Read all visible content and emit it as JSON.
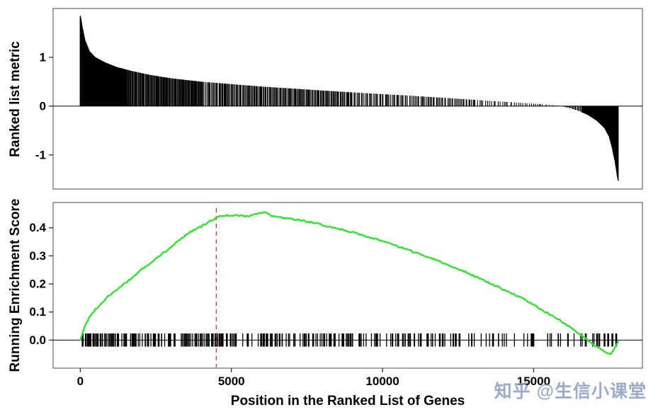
{
  "figure": {
    "background": "#ffffff",
    "panel_border_color": "#595959",
    "axis_text_color": "#000000",
    "tick_color": "#333333"
  },
  "watermark": {
    "text": "知乎 @生信小课堂",
    "color": "#8b9cc3"
  },
  "chart_data": [
    {
      "type": "bar",
      "name": "ranked-list-metric",
      "ylabel": "Ranked list metric",
      "yticks": [
        -1,
        0,
        1
      ],
      "ytick_labels": [
        "-1",
        "0",
        "1"
      ],
      "ylim": [
        -1.7,
        2.0
      ],
      "xlim": [
        -900,
        18600
      ],
      "x_range_genes": [
        0,
        17800
      ],
      "bar_color": "#000000",
      "envelope": [
        [
          0,
          1.85
        ],
        [
          60,
          1.62
        ],
        [
          150,
          1.35
        ],
        [
          300,
          1.12
        ],
        [
          500,
          1.0
        ],
        [
          800,
          0.9
        ],
        [
          1200,
          0.8
        ],
        [
          1700,
          0.72
        ],
        [
          2300,
          0.64
        ],
        [
          3000,
          0.57
        ],
        [
          4000,
          0.5
        ],
        [
          5000,
          0.45
        ],
        [
          6000,
          0.4
        ],
        [
          7000,
          0.36
        ],
        [
          8000,
          0.32
        ],
        [
          9000,
          0.28
        ],
        [
          10000,
          0.245
        ],
        [
          11000,
          0.21
        ],
        [
          12000,
          0.17
        ],
        [
          13000,
          0.13
        ],
        [
          14000,
          0.09
        ],
        [
          15000,
          0.05
        ],
        [
          15600,
          0.02
        ],
        [
          15900,
          0.0
        ],
        [
          16200,
          -0.04
        ],
        [
          16500,
          -0.1
        ],
        [
          16800,
          -0.18
        ],
        [
          17100,
          -0.3
        ],
        [
          17350,
          -0.45
        ],
        [
          17500,
          -0.62
        ],
        [
          17600,
          -0.85
        ],
        [
          17700,
          -1.15
        ],
        [
          17800,
          -1.55
        ]
      ],
      "bar_segments": [
        {
          "from": 0,
          "to": 400,
          "step": 6,
          "width": 1.6
        },
        {
          "from": 400,
          "to": 1500,
          "step": 13,
          "width": 1.4
        },
        {
          "from": 1500,
          "to": 4000,
          "step": 26,
          "width": 1.2
        },
        {
          "from": 4000,
          "to": 9000,
          "step": 34,
          "width": 1.2
        },
        {
          "from": 9000,
          "to": 13000,
          "step": 47,
          "width": 1.2
        },
        {
          "from": 13000,
          "to": 15800,
          "step": 68,
          "width": 1.1
        },
        {
          "from": 15800,
          "to": 16600,
          "step": 34,
          "width": 1.2
        },
        {
          "from": 16600,
          "to": 17800,
          "step": 8,
          "width": 1.6
        }
      ]
    },
    {
      "type": "line",
      "name": "running-enrichment-score",
      "ylabel": "Running Enrichment Score",
      "xlabel": "Position in the Ranked List of Genes",
      "yticks": [
        0.0,
        0.1,
        0.2,
        0.3,
        0.4
      ],
      "ytick_labels": [
        "0.0",
        "0.1",
        "0.2",
        "0.3",
        "0.4"
      ],
      "xticks": [
        0,
        5000,
        10000,
        15000
      ],
      "xtick_labels": [
        "0",
        "5000",
        "10000",
        "15000"
      ],
      "ylim": [
        -0.1,
        0.49
      ],
      "xlim": [
        -900,
        18600
      ],
      "line_color": "#2ee52e",
      "zero_line_color": "#000000",
      "peak_line": {
        "x": 4500,
        "color": "#e03a3a",
        "style": "dashed"
      },
      "es_max": 0.455,
      "series": [
        {
          "name": "Running ES",
          "points": [
            [
              0,
              0
            ],
            [
              150,
              0.05
            ],
            [
              300,
              0.08
            ],
            [
              500,
              0.11
            ],
            [
              700,
              0.13
            ],
            [
              900,
              0.155
            ],
            [
              1100,
              0.17
            ],
            [
              1400,
              0.195
            ],
            [
              1700,
              0.22
            ],
            [
              2000,
              0.25
            ],
            [
              2300,
              0.27
            ],
            [
              2600,
              0.3
            ],
            [
              2900,
              0.32
            ],
            [
              3200,
              0.35
            ],
            [
              3500,
              0.375
            ],
            [
              3800,
              0.395
            ],
            [
              4100,
              0.41
            ],
            [
              4400,
              0.43
            ],
            [
              4600,
              0.44
            ],
            [
              4800,
              0.445
            ],
            [
              5000,
              0.44
            ],
            [
              5200,
              0.445
            ],
            [
              5500,
              0.44
            ],
            [
              5800,
              0.45
            ],
            [
              6100,
              0.455
            ],
            [
              6400,
              0.44
            ],
            [
              6700,
              0.435
            ],
            [
              7000,
              0.43
            ],
            [
              7400,
              0.425
            ],
            [
              7800,
              0.415
            ],
            [
              8200,
              0.405
            ],
            [
              8600,
              0.395
            ],
            [
              9000,
              0.385
            ],
            [
              9400,
              0.37
            ],
            [
              9800,
              0.36
            ],
            [
              10200,
              0.345
            ],
            [
              10600,
              0.33
            ],
            [
              11000,
              0.315
            ],
            [
              11400,
              0.3
            ],
            [
              11800,
              0.285
            ],
            [
              12200,
              0.265
            ],
            [
              12600,
              0.25
            ],
            [
              13000,
              0.23
            ],
            [
              13400,
              0.21
            ],
            [
              13800,
              0.19
            ],
            [
              14200,
              0.17
            ],
            [
              14600,
              0.15
            ],
            [
              15000,
              0.125
            ],
            [
              15400,
              0.1
            ],
            [
              15800,
              0.075
            ],
            [
              16200,
              0.045
            ],
            [
              16600,
              0.015
            ],
            [
              16900,
              -0.01
            ],
            [
              17200,
              -0.03
            ],
            [
              17400,
              -0.045
            ],
            [
              17550,
              -0.05
            ],
            [
              17650,
              -0.035
            ],
            [
              17750,
              -0.015
            ],
            [
              17800,
              -0.005
            ]
          ]
        }
      ],
      "rug": {
        "color": "#000000",
        "segments": [
          {
            "from": 60,
            "to": 1500,
            "n": 42
          },
          {
            "from": 1500,
            "to": 3000,
            "n": 34
          },
          {
            "from": 3000,
            "to": 4500,
            "n": 30
          },
          {
            "from": 4300,
            "to": 4700,
            "n": 10
          },
          {
            "from": 4500,
            "to": 6500,
            "n": 34
          },
          {
            "from": 6500,
            "to": 9000,
            "n": 40
          },
          {
            "from": 9000,
            "to": 11500,
            "n": 34
          },
          {
            "from": 11500,
            "to": 14000,
            "n": 26
          },
          {
            "from": 14000,
            "to": 16000,
            "n": 16
          },
          {
            "from": 16000,
            "to": 17750,
            "n": 18
          }
        ]
      }
    }
  ]
}
